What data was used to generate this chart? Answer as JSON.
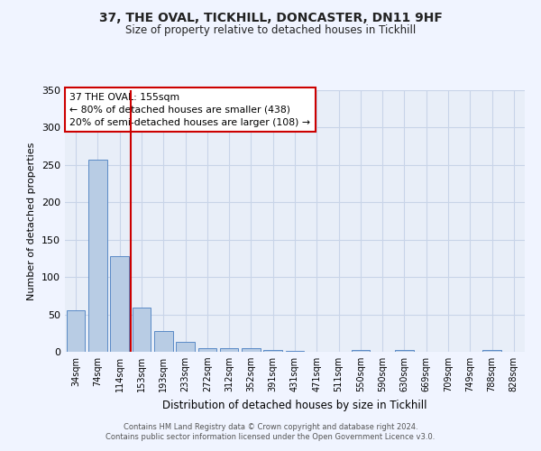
{
  "title1": "37, THE OVAL, TICKHILL, DONCASTER, DN11 9HF",
  "title2": "Size of property relative to detached houses in Tickhill",
  "xlabel": "Distribution of detached houses by size in Tickhill",
  "ylabel": "Number of detached properties",
  "bar_labels": [
    "34sqm",
    "74sqm",
    "114sqm",
    "153sqm",
    "193sqm",
    "233sqm",
    "272sqm",
    "312sqm",
    "352sqm",
    "391sqm",
    "431sqm",
    "471sqm",
    "511sqm",
    "550sqm",
    "590sqm",
    "630sqm",
    "669sqm",
    "709sqm",
    "749sqm",
    "788sqm",
    "828sqm"
  ],
  "bar_values": [
    55,
    257,
    128,
    59,
    28,
    13,
    5,
    5,
    5,
    2,
    1,
    0,
    0,
    3,
    0,
    2,
    0,
    0,
    0,
    2,
    0
  ],
  "bar_color": "#b8cce4",
  "bar_edgecolor": "#5a8ac6",
  "vline_color": "#cc0000",
  "ylim": [
    0,
    350
  ],
  "yticks": [
    0,
    50,
    100,
    150,
    200,
    250,
    300,
    350
  ],
  "annotation_title": "37 THE OVAL: 155sqm",
  "annotation_line1": "← 80% of detached houses are smaller (438)",
  "annotation_line2": "20% of semi-detached houses are larger (108) →",
  "annotation_box_color": "#cc0000",
  "grid_color": "#c8d4e8",
  "bg_color": "#e8eef8",
  "fig_bg_color": "#f0f4ff",
  "footer1": "Contains HM Land Registry data © Crown copyright and database right 2024.",
  "footer2": "Contains public sector information licensed under the Open Government Licence v3.0."
}
